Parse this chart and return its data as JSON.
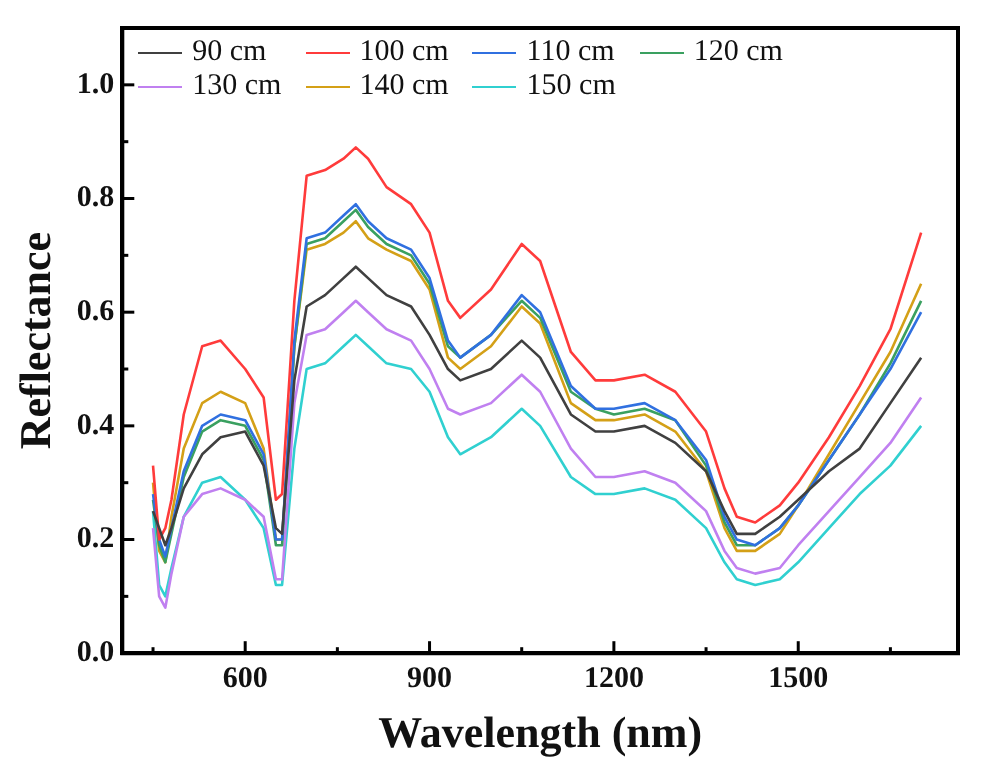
{
  "chart_data": {
    "type": "line",
    "xlabel": "Wavelength (nm)",
    "ylabel": "Reflectance",
    "x": [
      450,
      460,
      470,
      480,
      500,
      530,
      560,
      600,
      630,
      650,
      660,
      680,
      700,
      730,
      760,
      780,
      800,
      830,
      870,
      900,
      930,
      950,
      1000,
      1050,
      1080,
      1130,
      1170,
      1200,
      1250,
      1300,
      1350,
      1380,
      1400,
      1430,
      1470,
      1500,
      1550,
      1600,
      1650,
      1700
    ],
    "series": [
      {
        "name": "90 cm",
        "color": "#404040",
        "values": [
          0.25,
          0.22,
          0.19,
          0.22,
          0.29,
          0.35,
          0.38,
          0.39,
          0.33,
          0.22,
          0.21,
          0.48,
          0.61,
          0.63,
          0.66,
          0.68,
          0.66,
          0.63,
          0.61,
          0.56,
          0.5,
          0.48,
          0.5,
          0.55,
          0.52,
          0.42,
          0.39,
          0.39,
          0.4,
          0.37,
          0.32,
          0.25,
          0.21,
          0.21,
          0.24,
          0.27,
          0.32,
          0.36,
          0.44,
          0.52
        ]
      },
      {
        "name": "100 cm",
        "color": "#ff3b3b",
        "values": [
          0.33,
          0.2,
          0.22,
          0.27,
          0.42,
          0.54,
          0.55,
          0.5,
          0.45,
          0.27,
          0.28,
          0.62,
          0.84,
          0.85,
          0.87,
          0.89,
          0.87,
          0.82,
          0.79,
          0.74,
          0.62,
          0.59,
          0.64,
          0.72,
          0.69,
          0.53,
          0.48,
          0.48,
          0.49,
          0.46,
          0.39,
          0.29,
          0.24,
          0.23,
          0.26,
          0.3,
          0.38,
          0.47,
          0.57,
          0.74
        ]
      },
      {
        "name": "110 cm",
        "color": "#3070e0",
        "values": [
          0.28,
          0.2,
          0.17,
          0.22,
          0.32,
          0.4,
          0.42,
          0.41,
          0.35,
          0.2,
          0.2,
          0.55,
          0.73,
          0.74,
          0.77,
          0.79,
          0.76,
          0.73,
          0.71,
          0.66,
          0.55,
          0.52,
          0.56,
          0.63,
          0.6,
          0.47,
          0.43,
          0.43,
          0.44,
          0.41,
          0.34,
          0.24,
          0.2,
          0.19,
          0.22,
          0.26,
          0.34,
          0.42,
          0.5,
          0.6
        ]
      },
      {
        "name": "120 cm",
        "color": "#3aa060",
        "values": [
          0.27,
          0.19,
          0.16,
          0.21,
          0.31,
          0.39,
          0.41,
          0.4,
          0.34,
          0.19,
          0.19,
          0.54,
          0.72,
          0.73,
          0.76,
          0.78,
          0.75,
          0.72,
          0.7,
          0.65,
          0.54,
          0.52,
          0.56,
          0.62,
          0.59,
          0.46,
          0.43,
          0.42,
          0.43,
          0.41,
          0.33,
          0.23,
          0.19,
          0.19,
          0.22,
          0.26,
          0.34,
          0.42,
          0.51,
          0.62
        ]
      },
      {
        "name": "130 cm",
        "color": "#c080f0",
        "values": [
          0.22,
          0.1,
          0.08,
          0.14,
          0.24,
          0.28,
          0.29,
          0.27,
          0.24,
          0.13,
          0.13,
          0.44,
          0.56,
          0.57,
          0.6,
          0.62,
          0.6,
          0.57,
          0.55,
          0.5,
          0.43,
          0.42,
          0.44,
          0.49,
          0.46,
          0.36,
          0.31,
          0.31,
          0.32,
          0.3,
          0.25,
          0.18,
          0.15,
          0.14,
          0.15,
          0.19,
          0.25,
          0.31,
          0.37,
          0.45
        ]
      },
      {
        "name": "140 cm",
        "color": "#d4a017",
        "values": [
          0.3,
          0.18,
          0.16,
          0.24,
          0.36,
          0.44,
          0.46,
          0.44,
          0.36,
          0.2,
          0.2,
          0.54,
          0.71,
          0.72,
          0.74,
          0.76,
          0.73,
          0.71,
          0.69,
          0.64,
          0.52,
          0.5,
          0.54,
          0.61,
          0.58,
          0.44,
          0.41,
          0.41,
          0.42,
          0.39,
          0.32,
          0.22,
          0.18,
          0.18,
          0.21,
          0.26,
          0.35,
          0.44,
          0.53,
          0.65
        ]
      },
      {
        "name": "150 cm",
        "color": "#30d0d0",
        "values": [
          0.25,
          0.12,
          0.1,
          0.15,
          0.24,
          0.3,
          0.31,
          0.27,
          0.22,
          0.12,
          0.12,
          0.36,
          0.5,
          0.51,
          0.54,
          0.56,
          0.54,
          0.51,
          0.5,
          0.46,
          0.38,
          0.35,
          0.38,
          0.43,
          0.4,
          0.31,
          0.28,
          0.28,
          0.29,
          0.27,
          0.22,
          0.16,
          0.13,
          0.12,
          0.13,
          0.16,
          0.22,
          0.28,
          0.33,
          0.4
        ]
      }
    ],
    "xlim": [
      400,
      1760
    ],
    "xticks": [
      {
        "value": 450,
        "label": null
      },
      600,
      {
        "value": 750,
        "label": null
      },
      900,
      {
        "value": 1050,
        "label": null
      },
      1200,
      {
        "value": 1350,
        "label": null
      },
      1500,
      {
        "value": 1650,
        "label": null
      }
    ],
    "ylim": [
      0,
      1.1
    ],
    "yticks": [
      {
        "value": 0,
        "label": "0.0"
      },
      {
        "value": 0.1,
        "label": null
      },
      {
        "value": 0.2,
        "label": "0.2"
      },
      {
        "value": 0.3,
        "label": null
      },
      {
        "value": 0.4,
        "label": "0.4"
      },
      {
        "value": 0.5,
        "label": null
      },
      {
        "value": 0.6,
        "label": "0.6"
      },
      {
        "value": 0.7,
        "label": null
      },
      {
        "value": 0.8,
        "label": "0.8"
      },
      {
        "value": 0.9,
        "label": null
      },
      {
        "value": 1.0,
        "label": "1.0"
      }
    ],
    "legend": "top",
    "grid": false,
    "marker": "none",
    "line_style": "solid"
  }
}
